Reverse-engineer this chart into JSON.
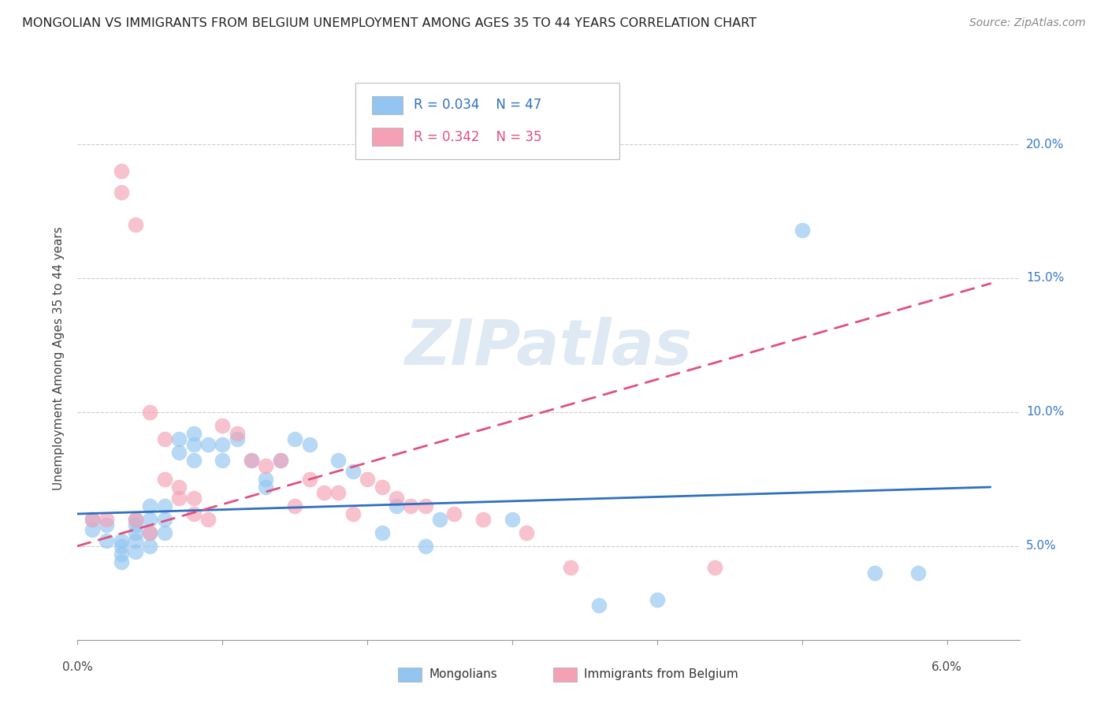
{
  "title": "MONGOLIAN VS IMMIGRANTS FROM BELGIUM UNEMPLOYMENT AMONG AGES 35 TO 44 YEARS CORRELATION CHART",
  "source": "Source: ZipAtlas.com",
  "ylabel": "Unemployment Among Ages 35 to 44 years",
  "ytick_labels": [
    "5.0%",
    "10.0%",
    "15.0%",
    "20.0%"
  ],
  "ytick_values": [
    0.05,
    0.1,
    0.15,
    0.2
  ],
  "xlim": [
    0.0,
    0.065
  ],
  "ylim": [
    0.015,
    0.225
  ],
  "mongolian_color": "#92c5f0",
  "belgium_color": "#f4a0b5",
  "mongolian_R": "0.034",
  "mongolian_N": "47",
  "belgium_R": "0.342",
  "belgium_N": "35",
  "legend_label_1": "Mongolians",
  "legend_label_2": "Immigrants from Belgium",
  "watermark": "ZIPatlas",
  "mongolian_scatter_x": [
    0.001,
    0.001,
    0.002,
    0.002,
    0.003,
    0.003,
    0.003,
    0.003,
    0.004,
    0.004,
    0.004,
    0.004,
    0.004,
    0.005,
    0.005,
    0.005,
    0.005,
    0.006,
    0.006,
    0.006,
    0.007,
    0.007,
    0.008,
    0.008,
    0.008,
    0.009,
    0.01,
    0.01,
    0.011,
    0.012,
    0.013,
    0.013,
    0.014,
    0.015,
    0.016,
    0.018,
    0.019,
    0.021,
    0.022,
    0.024,
    0.025,
    0.03,
    0.036,
    0.04,
    0.05,
    0.055,
    0.058
  ],
  "mongolian_scatter_y": [
    0.06,
    0.056,
    0.058,
    0.052,
    0.052,
    0.05,
    0.047,
    0.044,
    0.06,
    0.058,
    0.055,
    0.052,
    0.048,
    0.065,
    0.06,
    0.055,
    0.05,
    0.065,
    0.06,
    0.055,
    0.09,
    0.085,
    0.092,
    0.088,
    0.082,
    0.088,
    0.088,
    0.082,
    0.09,
    0.082,
    0.075,
    0.072,
    0.082,
    0.09,
    0.088,
    0.082,
    0.078,
    0.055,
    0.065,
    0.05,
    0.06,
    0.06,
    0.028,
    0.03,
    0.168,
    0.04,
    0.04
  ],
  "belgium_scatter_x": [
    0.001,
    0.002,
    0.003,
    0.003,
    0.004,
    0.004,
    0.005,
    0.005,
    0.006,
    0.006,
    0.007,
    0.007,
    0.008,
    0.008,
    0.009,
    0.01,
    0.011,
    0.012,
    0.013,
    0.014,
    0.015,
    0.016,
    0.017,
    0.018,
    0.019,
    0.02,
    0.021,
    0.022,
    0.023,
    0.024,
    0.026,
    0.028,
    0.031,
    0.034,
    0.044
  ],
  "belgium_scatter_y": [
    0.06,
    0.06,
    0.19,
    0.182,
    0.17,
    0.06,
    0.055,
    0.1,
    0.09,
    0.075,
    0.072,
    0.068,
    0.068,
    0.062,
    0.06,
    0.095,
    0.092,
    0.082,
    0.08,
    0.082,
    0.065,
    0.075,
    0.07,
    0.07,
    0.062,
    0.075,
    0.072,
    0.068,
    0.065,
    0.065,
    0.062,
    0.06,
    0.055,
    0.042,
    0.042
  ],
  "mongolian_line_x": [
    0.0,
    0.063
  ],
  "mongolian_line_y": [
    0.062,
    0.072
  ],
  "belgium_line_x": [
    0.0,
    0.063
  ],
  "belgium_line_y": [
    0.05,
    0.148
  ]
}
